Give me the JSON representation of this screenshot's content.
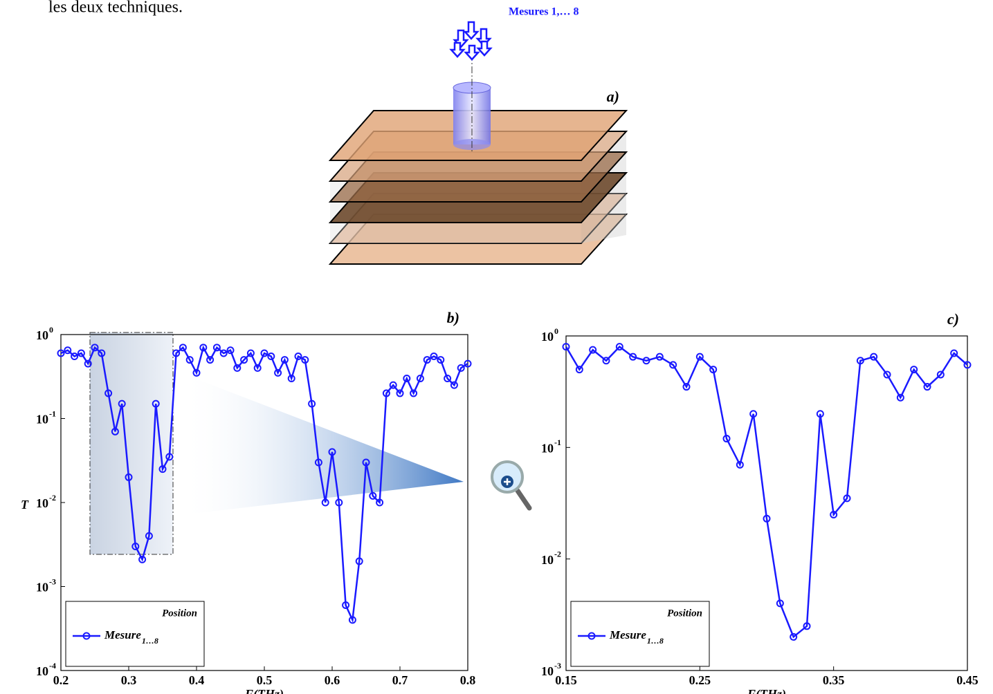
{
  "text": {
    "line": "les deux techniques."
  },
  "diagram": {
    "panel_label": "a)",
    "label": "Mesures 1,… 8"
  },
  "chart_data": [
    {
      "type": "line",
      "panel_label": "b)",
      "x_label": "F(THz)",
      "y_label": "T",
      "yscale": "log",
      "xlim": [
        0.2,
        0.8
      ],
      "xticks": [
        0.2,
        0.3,
        0.4,
        0.5,
        0.6,
        0.7,
        0.8
      ],
      "ylim": [
        0.0001,
        1
      ],
      "yticks": [
        {
          "value": 0.0001,
          "label": "10",
          "exponent": "-4"
        },
        {
          "value": 0.001,
          "label": "10",
          "exponent": "-3"
        },
        {
          "value": 0.01,
          "label": "10",
          "exponent": "-2"
        },
        {
          "value": 0.1,
          "label": "10",
          "exponent": "-1"
        },
        {
          "value": 1,
          "label": "10",
          "exponent": "0"
        }
      ],
      "legend_title": "Position",
      "legend": "lower left",
      "x": [
        0.2,
        0.21,
        0.22,
        0.23,
        0.24,
        0.25,
        0.26,
        0.27,
        0.28,
        0.29,
        0.3,
        0.31,
        0.32,
        0.33,
        0.34,
        0.35,
        0.36,
        0.37,
        0.38,
        0.39,
        0.4,
        0.41,
        0.42,
        0.43,
        0.44,
        0.45,
        0.46,
        0.47,
        0.48,
        0.49,
        0.5,
        0.51,
        0.52,
        0.53,
        0.54,
        0.55,
        0.56,
        0.57,
        0.58,
        0.59,
        0.6,
        0.61,
        0.62,
        0.63,
        0.64,
        0.65,
        0.66,
        0.67,
        0.68,
        0.69,
        0.7,
        0.71,
        0.72,
        0.73,
        0.74,
        0.75,
        0.76,
        0.77,
        0.78,
        0.79,
        0.8
      ],
      "series": [
        {
          "name": "Mesure",
          "name_subscript": "1…8",
          "color": "#1a1aff",
          "values": [
            0.6,
            0.65,
            0.55,
            0.6,
            0.45,
            0.7,
            0.6,
            0.2,
            0.07,
            0.15,
            0.02,
            0.003,
            0.0021,
            0.004,
            0.15,
            0.025,
            0.035,
            0.6,
            0.7,
            0.5,
            0.35,
            0.7,
            0.5,
            0.7,
            0.6,
            0.65,
            0.4,
            0.5,
            0.6,
            0.4,
            0.6,
            0.55,
            0.35,
            0.5,
            0.3,
            0.55,
            0.5,
            0.15,
            0.03,
            0.01,
            0.04,
            0.01,
            0.0006,
            0.0004,
            0.002,
            0.03,
            0.012,
            0.01,
            0.2,
            0.25,
            0.2,
            0.3,
            0.2,
            0.3,
            0.5,
            0.55,
            0.5,
            0.3,
            0.25,
            0.4,
            0.45
          ]
        }
      ]
    },
    {
      "type": "line",
      "panel_label": "c)",
      "x_label": "F(THz)",
      "yscale": "log",
      "xlim": [
        0.15,
        0.45
      ],
      "xticks": [
        0.15,
        0.25,
        0.35,
        0.45
      ],
      "ylim": [
        0.001,
        1
      ],
      "yticks": [
        {
          "value": 0.001,
          "label": "10",
          "exponent": "-3"
        },
        {
          "value": 0.01,
          "label": "10",
          "exponent": "-2"
        },
        {
          "value": 0.1,
          "label": "10",
          "exponent": "-1"
        },
        {
          "value": 1,
          "label": "10",
          "exponent": "0"
        }
      ],
      "legend_title": "Position",
      "legend": "lower left",
      "x": [
        0.15,
        0.16,
        0.17,
        0.18,
        0.19,
        0.2,
        0.21,
        0.22,
        0.23,
        0.24,
        0.25,
        0.26,
        0.27,
        0.28,
        0.29,
        0.3,
        0.31,
        0.32,
        0.33,
        0.34,
        0.35,
        0.36,
        0.37,
        0.38,
        0.39,
        0.4,
        0.41,
        0.42,
        0.43,
        0.44,
        0.45
      ],
      "series": [
        {
          "name": "Mesure",
          "name_subscript": "1…8",
          "color": "#1a1aff",
          "values": [
            0.8,
            0.5,
            0.75,
            0.6,
            0.8,
            0.65,
            0.6,
            0.65,
            0.55,
            0.35,
            0.65,
            0.5,
            0.12,
            0.07,
            0.2,
            0.023,
            0.004,
            0.002,
            0.0025,
            0.2,
            0.025,
            0.035,
            0.6,
            0.65,
            0.45,
            0.28,
            0.5,
            0.35,
            0.45,
            0.7,
            0.55
          ]
        }
      ]
    }
  ]
}
